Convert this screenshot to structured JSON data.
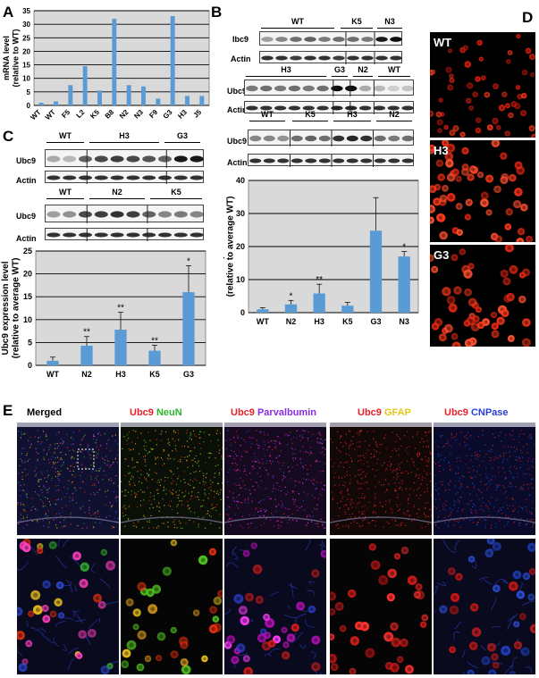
{
  "panels": {
    "A": "A",
    "B": "B",
    "C": "C",
    "D": "D",
    "E": "E"
  },
  "chart_data": [
    {
      "panel": "A",
      "type": "bar",
      "categories": [
        "WT",
        "WT",
        "F5",
        "L2",
        "K5",
        "B8",
        "N2",
        "N3",
        "F9",
        "G3",
        "H3",
        "J5"
      ],
      "values": [
        1,
        1.5,
        7.5,
        14.5,
        5.5,
        32,
        7.5,
        7,
        2.5,
        33,
        3.5,
        3.5
      ],
      "ylabel": "mRNA level\n(relative to WT)",
      "ylim": [
        0,
        35
      ],
      "yticks": [
        0,
        5,
        10,
        15,
        20,
        25,
        30,
        35
      ],
      "grid": true,
      "bar_color": "#5b9bd5"
    },
    {
      "panel": "B",
      "type": "bar",
      "categories": [
        "WT",
        "N2",
        "H3",
        "K5",
        "G3",
        "N3"
      ],
      "values": [
        1,
        2.5,
        5.8,
        2.1,
        24.8,
        17
      ],
      "errors": [
        0.5,
        1.2,
        2.8,
        1.0,
        10,
        1.5
      ],
      "significance": [
        "",
        "*",
        "**",
        "",
        "",
        "*"
      ],
      "ylabel": "Ubc9 expression level\n(relative to average WT)",
      "ylim": [
        0,
        40
      ],
      "yticks": [
        0,
        10,
        20,
        30,
        40
      ],
      "grid": true,
      "bar_color": "#5b9bd5"
    },
    {
      "panel": "C",
      "type": "bar",
      "categories": [
        "WT",
        "N2",
        "H3",
        "K5",
        "G3"
      ],
      "values": [
        1,
        4.3,
        7.8,
        3.2,
        16
      ],
      "errors": [
        0.8,
        2.0,
        3.8,
        1.2,
        5.8
      ],
      "significance": [
        "",
        "**",
        "**",
        "**",
        "*"
      ],
      "ylabel": "Ubc9 expression level\n(relative to average WT)",
      "ylim": [
        0,
        25
      ],
      "yticks": [
        0,
        5,
        10,
        15,
        20,
        25
      ],
      "grid": true,
      "bar_color": "#5b9bd5"
    }
  ],
  "blots": {
    "B": {
      "row1_groups": [
        "WT",
        "K5",
        "N3"
      ],
      "row2_groups": [
        "H3",
        "G3",
        "N2",
        "WT"
      ],
      "row3_groups": [
        "WT",
        "K5",
        "H3",
        "N2"
      ],
      "ubc9_label": "Ubc9",
      "ubc9_label_alt": "Ibc9",
      "actin_label": "Actin"
    },
    "C": {
      "row1_groups": [
        "WT",
        "H3",
        "G3"
      ],
      "row2_groups": [
        "WT",
        "N2",
        "K5"
      ],
      "ubc9_label": "Ubc9",
      "actin_label": "Actin"
    }
  },
  "panelD": {
    "labels": [
      "WT",
      "H3",
      "G3"
    ]
  },
  "panelE": {
    "headers": [
      {
        "parts": [
          {
            "t": "Merged",
            "c": "#000000"
          }
        ]
      },
      {
        "parts": [
          {
            "t": "Ubc9 ",
            "c": "#e8202a"
          },
          {
            "t": "NeuN",
            "c": "#2ab52a"
          }
        ]
      },
      {
        "parts": [
          {
            "t": "Ubc9 ",
            "c": "#e8202a"
          },
          {
            "t": "Parvalbumin",
            "c": "#8a2be2"
          }
        ]
      },
      {
        "parts": [
          {
            "t": "Ubc9 ",
            "c": "#e8202a"
          },
          {
            "t": "GFAP",
            "c": "#e6c619"
          }
        ]
      },
      {
        "parts": [
          {
            "t": "Ubc9 ",
            "c": "#e8202a"
          },
          {
            "t": "CNPase",
            "c": "#2a3fd6"
          }
        ]
      }
    ]
  }
}
